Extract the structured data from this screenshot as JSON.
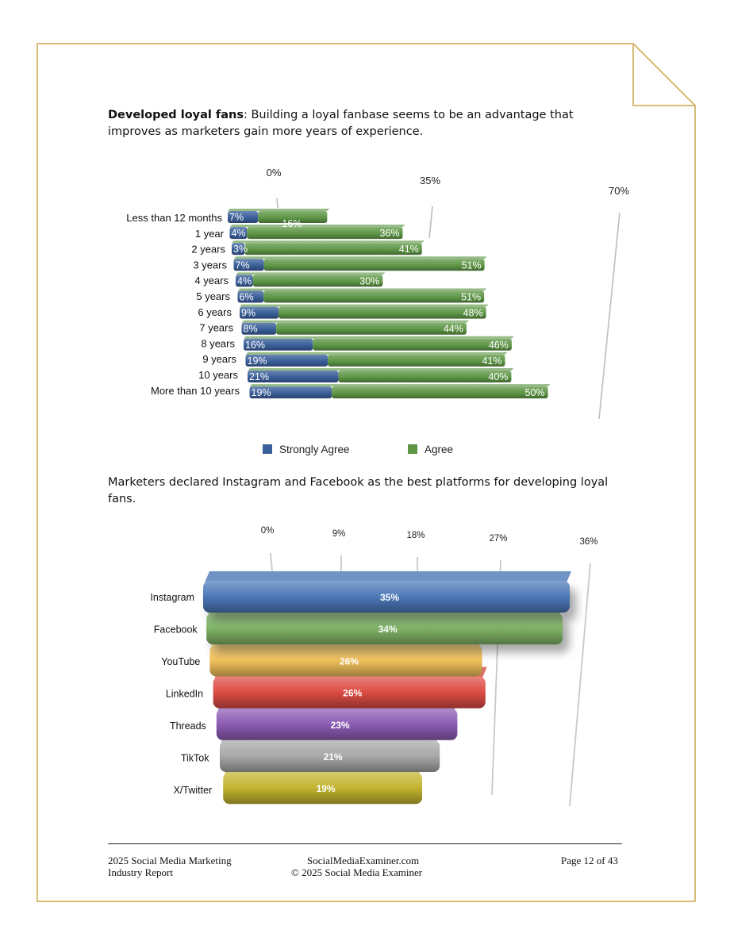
{
  "document": {
    "para1_bold": "Developed loyal fans",
    "para1_rest": ": Building a loyal fanbase seems to be an advantage that improves as marketers gain more years of experience.",
    "para2": "Marketers declared Instagram and Facebook as the best platforms for developing loyal fans."
  },
  "footer": {
    "left_line1": "2025 Social Media Marketing",
    "left_line2": "Industry Report",
    "center_line1": "SocialMediaExaminer.com",
    "center_line2": "© 2025 Social Media Examiner",
    "right": "Page 12 of 43"
  },
  "chart_data": [
    {
      "type": "bar",
      "orientation": "horizontal",
      "stacked": true,
      "title": "",
      "xlabel": "",
      "ylabel": "",
      "xlim": [
        0,
        70
      ],
      "x_ticks": [
        "0%",
        "35%",
        "70%"
      ],
      "categories": [
        "Less than 12 months",
        "1 year",
        "2 years",
        "3 years",
        "4 years",
        "5 years",
        "6 years",
        "7 years",
        "8 years",
        "9 years",
        "10 years",
        "More than 10 years"
      ],
      "series": [
        {
          "name": "Strongly Agree",
          "color": "#3a5f9a",
          "values": [
            7,
            4,
            3,
            7,
            4,
            6,
            9,
            8,
            16,
            19,
            21,
            19
          ]
        },
        {
          "name": "Agree",
          "color": "#5e9646",
          "values": [
            16,
            36,
            41,
            51,
            30,
            51,
            48,
            44,
            46,
            41,
            40,
            50
          ]
        }
      ],
      "legend": "bottom"
    },
    {
      "type": "bar",
      "orientation": "horizontal",
      "title": "",
      "xlabel": "",
      "ylabel": "",
      "xlim": [
        0,
        36
      ],
      "x_ticks": [
        "0%",
        "9%",
        "18%",
        "27%",
        "36%"
      ],
      "categories": [
        "Instagram",
        "Facebook",
        "YouTube",
        "LinkedIn",
        "Threads",
        "TikTok",
        "X/Twitter"
      ],
      "values": [
        35,
        34,
        26,
        26,
        23,
        21,
        19
      ],
      "labels": [
        "35%",
        "34%",
        "26%",
        "26%",
        "23%",
        "21%",
        "19%"
      ],
      "colors": [
        "#4c78b8",
        "#7fb466",
        "#f2c15a",
        "#dc4c44",
        "#8d5cb5",
        "#a8a8a8",
        "#c2b42e"
      ]
    }
  ]
}
